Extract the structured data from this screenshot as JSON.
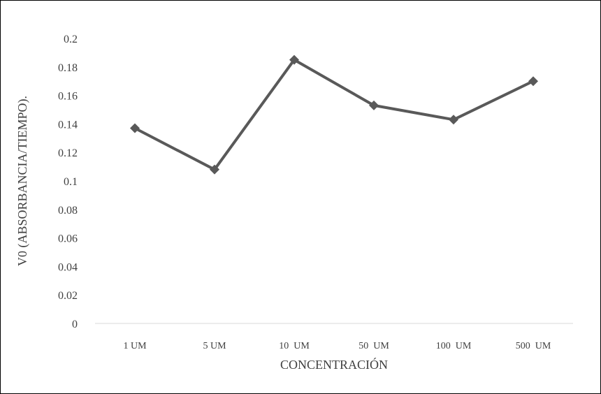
{
  "chart_data": {
    "type": "line",
    "title": "",
    "xlabel": "CONCENTRACIÓN",
    "ylabel": "V0 (ABSORBANCIA/TIEMPO).",
    "categories": [
      "1 UM",
      "5 UM",
      "10  UM",
      "50  UM",
      "100  UM",
      "500  UM"
    ],
    "series": [
      {
        "values": [
          0.137,
          0.108,
          0.185,
          0.153,
          0.143,
          0.17
        ]
      }
    ],
    "ylim": [
      0,
      0.2
    ],
    "yticks": [
      "0",
      "0.02",
      "0.04",
      "0.06",
      "0.08",
      "0.1",
      "0.12",
      "0.14",
      "0.16",
      "0.18",
      "0.2"
    ],
    "marker": "diamond",
    "grid": false,
    "legend": "none",
    "colors": {
      "line": "#595959",
      "axis": "#d9d9d9",
      "text": "#404040"
    }
  }
}
